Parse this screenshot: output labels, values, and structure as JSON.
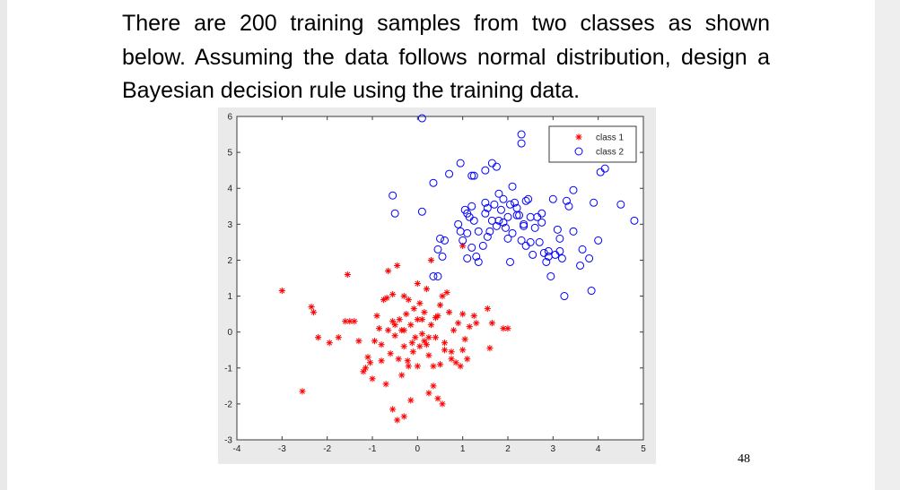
{
  "slide": {
    "question": "There are 200 training samples from two classes as shown below. Assuming the data follows normal distribution, design a Bayesian decision rule using the training data.",
    "page_number": "48"
  },
  "chart_data": {
    "type": "scatter",
    "xlim": [
      -4,
      5
    ],
    "ylim": [
      -3,
      6
    ],
    "xticks": [
      -4,
      -3,
      -2,
      -1,
      0,
      1,
      2,
      3,
      4,
      5
    ],
    "yticks": [
      -3,
      -2,
      -1,
      0,
      1,
      2,
      3,
      4,
      5,
      6
    ],
    "grid": false,
    "legend_position": "top-right",
    "colors": {
      "class1": "#ff0000",
      "class2": "#0000ff"
    },
    "series": [
      {
        "name": "class 1",
        "marker": "asterisk",
        "color": "#ff0000",
        "points": [
          [
            -3.0,
            1.15
          ],
          [
            -2.55,
            -1.65
          ],
          [
            -2.35,
            0.7
          ],
          [
            -2.3,
            0.55
          ],
          [
            -2.2,
            -0.15
          ],
          [
            -1.95,
            -0.3
          ],
          [
            -1.75,
            -0.15
          ],
          [
            -1.6,
            0.3
          ],
          [
            -1.5,
            0.3
          ],
          [
            -1.55,
            1.6
          ],
          [
            -1.4,
            0.3
          ],
          [
            -1.3,
            -0.25
          ],
          [
            -1.2,
            -1.1
          ],
          [
            -1.15,
            -1.0
          ],
          [
            -1.1,
            -0.7
          ],
          [
            -1.05,
            -0.85
          ],
          [
            -1.0,
            -1.3
          ],
          [
            -0.95,
            -0.25
          ],
          [
            -0.9,
            0.45
          ],
          [
            -0.85,
            0.1
          ],
          [
            -0.8,
            -0.35
          ],
          [
            -0.75,
            0.9
          ],
          [
            -0.7,
            -1.45
          ],
          [
            -0.68,
            0.95
          ],
          [
            -0.65,
            1.7
          ],
          [
            -0.6,
            -0.6
          ],
          [
            -0.55,
            1.05
          ],
          [
            -0.55,
            0.3
          ],
          [
            -0.5,
            -0.1
          ],
          [
            -0.45,
            1.85
          ],
          [
            -0.42,
            -0.75
          ],
          [
            -0.4,
            0.35
          ],
          [
            -0.35,
            -1.2
          ],
          [
            -0.35,
            0.05
          ],
          [
            -0.3,
            1.0
          ],
          [
            -0.3,
            -0.4
          ],
          [
            -0.25,
            0.5
          ],
          [
            -0.22,
            -0.8
          ],
          [
            -0.2,
            0.9
          ],
          [
            -0.15,
            0.2
          ],
          [
            -0.12,
            -0.3
          ],
          [
            -0.1,
            -0.55
          ],
          [
            -0.08,
            0.65
          ],
          [
            -0.05,
            -0.15
          ],
          [
            0.0,
            0.35
          ],
          [
            0.0,
            -0.95
          ],
          [
            0.05,
            -0.4
          ],
          [
            0.05,
            0.8
          ],
          [
            0.1,
            -0.05
          ],
          [
            0.15,
            0.55
          ],
          [
            0.2,
            -0.35
          ],
          [
            0.2,
            1.2
          ],
          [
            0.25,
            -0.65
          ],
          [
            0.3,
            0.2
          ],
          [
            0.3,
            2.0
          ],
          [
            0.35,
            -1.5
          ],
          [
            0.4,
            -0.15
          ],
          [
            0.45,
            0.45
          ],
          [
            0.45,
            -1.85
          ],
          [
            0.5,
            -0.9
          ],
          [
            0.5,
            0.75
          ],
          [
            0.55,
            1.0
          ],
          [
            0.6,
            -0.3
          ],
          [
            0.65,
            1.1
          ],
          [
            0.7,
            0.55
          ],
          [
            0.75,
            -0.55
          ],
          [
            0.8,
            0.05
          ],
          [
            0.85,
            -0.85
          ],
          [
            0.9,
            0.25
          ],
          [
            0.95,
            -0.95
          ],
          [
            1.0,
            0.5
          ],
          [
            1.0,
            -0.5
          ],
          [
            1.05,
            -0.2
          ],
          [
            1.1,
            -0.75
          ],
          [
            1.15,
            0.15
          ],
          [
            1.25,
            0.45
          ],
          [
            1.3,
            0.25
          ],
          [
            1.55,
            0.65
          ],
          [
            1.6,
            -0.45
          ],
          [
            1.65,
            0.25
          ],
          [
            1.9,
            0.1
          ],
          [
            2.0,
            0.1
          ],
          [
            -0.55,
            -2.15
          ],
          [
            -0.45,
            -2.45
          ],
          [
            -0.3,
            -2.35
          ],
          [
            -0.15,
            -1.9
          ],
          [
            0.25,
            -1.7
          ],
          [
            0.55,
            -2.0
          ],
          [
            0.1,
            0.35
          ],
          [
            -0.5,
            0.2
          ],
          [
            0.35,
            -0.95
          ],
          [
            0.6,
            -0.5
          ],
          [
            -0.2,
            -0.95
          ],
          [
            0.15,
            -0.25
          ],
          [
            0.0,
            1.35
          ],
          [
            -0.8,
            -0.8
          ],
          [
            0.4,
            0.4
          ],
          [
            -0.65,
            0.05
          ],
          [
            0.75,
            -0.75
          ],
          [
            0.25,
            -0.15
          ],
          [
            1.0,
            2.4
          ],
          [
            -0.3,
            0.05
          ]
        ]
      },
      {
        "name": "class 2",
        "marker": "circle",
        "color": "#0000ff",
        "points": [
          [
            0.1,
            5.95
          ],
          [
            -0.55,
            3.8
          ],
          [
            -0.5,
            3.3
          ],
          [
            0.1,
            3.35
          ],
          [
            0.35,
            4.15
          ],
          [
            0.45,
            2.3
          ],
          [
            0.55,
            2.1
          ],
          [
            0.5,
            2.6
          ],
          [
            0.6,
            2.55
          ],
          [
            0.35,
            1.55
          ],
          [
            0.45,
            1.55
          ],
          [
            0.7,
            4.4
          ],
          [
            0.95,
            4.7
          ],
          [
            0.9,
            3.0
          ],
          [
            0.95,
            2.8
          ],
          [
            1.0,
            2.55
          ],
          [
            1.05,
            3.4
          ],
          [
            1.1,
            3.3
          ],
          [
            1.15,
            3.2
          ],
          [
            1.2,
            4.35
          ],
          [
            1.25,
            3.1
          ],
          [
            1.2,
            2.35
          ],
          [
            1.1,
            2.05
          ],
          [
            1.3,
            2.1
          ],
          [
            1.35,
            1.95
          ],
          [
            1.45,
            2.4
          ],
          [
            1.5,
            3.6
          ],
          [
            1.5,
            4.5
          ],
          [
            1.55,
            3.45
          ],
          [
            1.6,
            2.8
          ],
          [
            1.65,
            3.1
          ],
          [
            1.7,
            3.55
          ],
          [
            1.75,
            2.95
          ],
          [
            1.8,
            3.85
          ],
          [
            1.85,
            3.4
          ],
          [
            1.9,
            3.7
          ],
          [
            1.95,
            2.9
          ],
          [
            2.0,
            3.2
          ],
          [
            2.05,
            3.55
          ],
          [
            2.1,
            4.05
          ],
          [
            2.1,
            2.75
          ],
          [
            2.15,
            3.6
          ],
          [
            2.2,
            3.45
          ],
          [
            2.25,
            3.25
          ],
          [
            2.3,
            2.55
          ],
          [
            2.35,
            3.0
          ],
          [
            2.4,
            2.4
          ],
          [
            2.45,
            3.7
          ],
          [
            2.5,
            3.2
          ],
          [
            2.55,
            2.15
          ],
          [
            2.6,
            2.9
          ],
          [
            2.65,
            3.2
          ],
          [
            2.7,
            2.5
          ],
          [
            2.75,
            3.05
          ],
          [
            2.8,
            2.2
          ],
          [
            2.85,
            1.95
          ],
          [
            2.9,
            2.1
          ],
          [
            2.95,
            1.55
          ],
          [
            3.0,
            3.7
          ],
          [
            3.05,
            2.15
          ],
          [
            3.1,
            2.85
          ],
          [
            3.15,
            2.6
          ],
          [
            3.2,
            2.05
          ],
          [
            3.25,
            1.0
          ],
          [
            3.3,
            3.65
          ],
          [
            3.35,
            3.5
          ],
          [
            3.45,
            2.8
          ],
          [
            3.6,
            1.85
          ],
          [
            3.65,
            2.3
          ],
          [
            3.8,
            2.05
          ],
          [
            3.85,
            1.15
          ],
          [
            3.9,
            3.6
          ],
          [
            4.0,
            2.55
          ],
          [
            4.05,
            4.45
          ],
          [
            4.15,
            4.55
          ],
          [
            4.5,
            3.55
          ],
          [
            4.8,
            3.1
          ],
          [
            2.3,
            5.5
          ],
          [
            2.3,
            5.25
          ],
          [
            3.45,
            3.95
          ],
          [
            3.3,
            5.05
          ],
          [
            2.4,
            3.65
          ],
          [
            1.65,
            4.7
          ],
          [
            1.75,
            4.6
          ],
          [
            1.2,
            3.5
          ],
          [
            1.5,
            3.3
          ],
          [
            2.2,
            3.25
          ],
          [
            2.75,
            3.3
          ],
          [
            1.8,
            3.1
          ],
          [
            2.0,
            2.6
          ],
          [
            1.35,
            2.8
          ],
          [
            1.1,
            2.75
          ],
          [
            2.5,
            2.5
          ],
          [
            2.9,
            2.25
          ],
          [
            1.9,
            3.05
          ],
          [
            1.55,
            2.65
          ],
          [
            2.35,
            2.95
          ],
          [
            3.15,
            2.25
          ],
          [
            1.25,
            4.35
          ],
          [
            2.05,
            1.95
          ]
        ]
      }
    ]
  }
}
